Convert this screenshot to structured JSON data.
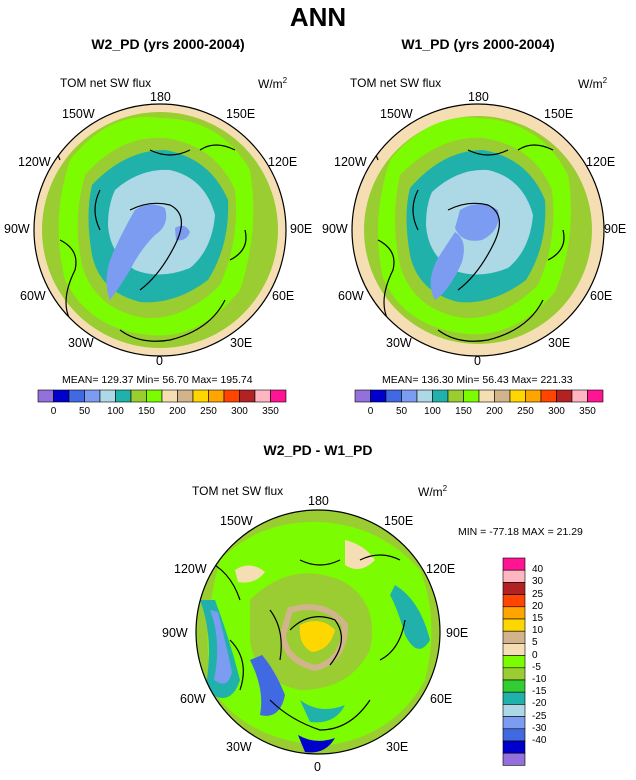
{
  "title": "ANN",
  "variable_label": "TOM net SW flux",
  "units_base": "W/m",
  "units_exp": "2",
  "colors": {
    "abs_levels": [
      "#9370db",
      "#0000cd",
      "#4169e1",
      "#7b9cf0",
      "#add8e6",
      "#20b2aa",
      "#9acd32",
      "#7cfc00",
      "#f5deb3",
      "#d2b48c",
      "#ffd700",
      "#ffa500",
      "#ff4500",
      "#b22222",
      "#ffb6c1",
      "#ff1493"
    ],
    "diff_levels": [
      "#9370db",
      "#0000cd",
      "#4169e1",
      "#7b9cf0",
      "#add8e6",
      "#20b2aa",
      "#32cd32",
      "#9acd32",
      "#7cfc00",
      "#f5deb3",
      "#d2b48c",
      "#ffd700",
      "#ffa500",
      "#ff4500",
      "#b22222",
      "#ffb6c1",
      "#ff1493"
    ],
    "coast": "#000000"
  },
  "panels": [
    {
      "title": "W2_PD (yrs 2000-2004)",
      "stats": "MEAN= 129.37  Min=  56.70  Max= 195.74",
      "lon_labels": [
        "180",
        "150E",
        "120E",
        "90E",
        "60E",
        "30E",
        "0",
        "30W",
        "60W",
        "90W",
        "120W",
        "150W"
      ]
    },
    {
      "title": "W1_PD (yrs 2000-2004)",
      "stats": "MEAN= 136.30  Min=  56.43  Max= 221.33",
      "lon_labels": [
        "180",
        "150E",
        "120E",
        "90E",
        "60E",
        "30E",
        "0",
        "30W",
        "60W",
        "90W",
        "120W",
        "150W"
      ]
    }
  ],
  "abs_colorbar_labels": [
    "0",
    "50",
    "100",
    "150",
    "200",
    "250",
    "300",
    "350"
  ],
  "diff_panel": {
    "title": "W2_PD - W1_PD",
    "minmax": "MIN = -77.18 MAX =  21.29",
    "lon_labels": [
      "180",
      "150E",
      "120E",
      "90E",
      "60E",
      "30E",
      "0",
      "30W",
      "60W",
      "90W",
      "120W",
      "150W"
    ],
    "colorbar_labels": [
      "40",
      "30",
      "25",
      "20",
      "15",
      "10",
      "5",
      "0",
      "-5",
      "-10",
      "-15",
      "-20",
      "-25",
      "-30",
      "-40"
    ]
  }
}
